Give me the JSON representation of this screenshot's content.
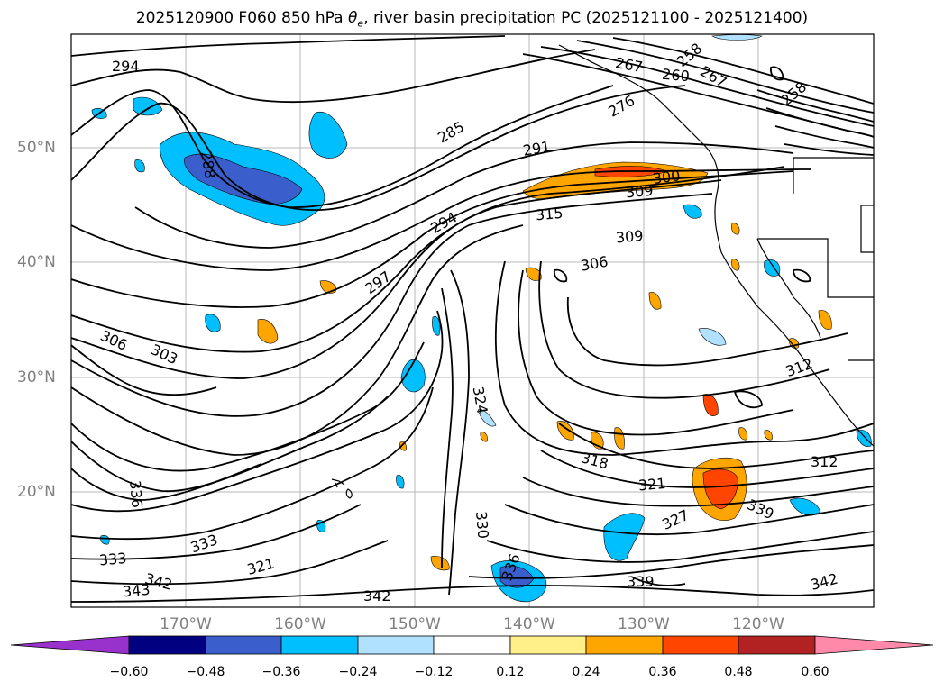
{
  "title_main": "2025120900 F060 850 hPa ",
  "title_symbol": "θ",
  "title_sub": "e",
  "title_rest": ", river basin precipitation PC (2025121100 - 2025121400)",
  "latitude_labels": [
    "50°N",
    "40°N",
    "30°N",
    "20°N"
  ],
  "longitude_labels": [
    "170°W",
    "160°W",
    "150°W",
    "140°W",
    "130°W",
    "120°W"
  ],
  "colorbar": {
    "ticks": [
      "−0.60",
      "−0.48",
      "−0.36",
      "−0.24",
      "−0.12",
      "0.12",
      "0.24",
      "0.36",
      "0.48",
      "0.60"
    ],
    "colors": {
      "under": "#9932cc",
      "c1": "#000080",
      "c2": "#3a5fcd",
      "c3": "#00bfff",
      "c4": "#b0e2ff",
      "c5": "#ffffff",
      "c6": "#fff08a",
      "c7": "#ffa500",
      "c8": "#ff4500",
      "c9": "#b22222",
      "over": "#ff89a8"
    }
  },
  "contour_labels": [
    "294",
    "285",
    "288",
    "291",
    "294",
    "297",
    "300",
    "309",
    "315",
    "309",
    "306",
    "306",
    "303",
    "312",
    "318",
    "321",
    "324",
    "327",
    "330",
    "333",
    "333",
    "336",
    "336",
    "339",
    "339",
    "342",
    "342",
    "343",
    "342",
    "312",
    "321",
    "267",
    "260",
    "258",
    "258",
    "267",
    "276"
  ],
  "map": {
    "lat_range": [
      10,
      60
    ],
    "lon_range": [
      -180,
      -110
    ],
    "grid": true
  }
}
